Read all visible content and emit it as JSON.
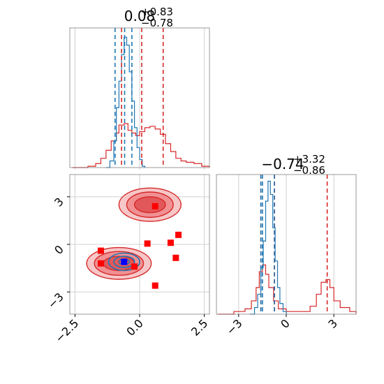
{
  "chart_data": {
    "type": "corner",
    "colors": {
      "red": "#d62728",
      "blue": "#1f77b4",
      "scatter": "#ff0000",
      "marker": "#0000ff",
      "grid": "#d0d0d0"
    },
    "params": [
      {
        "title_value": "0.08",
        "title_plus": "+0.83",
        "title_minus": "−0.78",
        "range": [
          -2.7,
          2.7
        ],
        "xticks": [
          -2.5,
          0.0,
          2.5
        ],
        "xtick_labels": [
          "−2.5",
          "0.0",
          "2.5"
        ],
        "red_quantiles": [
          -0.7,
          0.08,
          0.91
        ],
        "blue_quantiles": [
          -0.95,
          -0.58,
          -0.3
        ],
        "red_hist": [
          {
            "x": -2.6,
            "y": 0.0
          },
          {
            "x": -2.0,
            "y": 0.01
          },
          {
            "x": -1.7,
            "y": 0.03
          },
          {
            "x": -1.5,
            "y": 0.07
          },
          {
            "x": -1.3,
            "y": 0.13
          },
          {
            "x": -1.1,
            "y": 0.2
          },
          {
            "x": -0.9,
            "y": 0.26
          },
          {
            "x": -0.8,
            "y": 0.32
          },
          {
            "x": -0.6,
            "y": 0.33
          },
          {
            "x": -0.45,
            "y": 0.28
          },
          {
            "x": -0.3,
            "y": 0.26
          },
          {
            "x": -0.15,
            "y": 0.24
          },
          {
            "x": 0.0,
            "y": 0.27
          },
          {
            "x": 0.2,
            "y": 0.3
          },
          {
            "x": 0.4,
            "y": 0.31
          },
          {
            "x": 0.6,
            "y": 0.29
          },
          {
            "x": 0.8,
            "y": 0.25
          },
          {
            "x": 1.0,
            "y": 0.18
          },
          {
            "x": 1.2,
            "y": 0.12
          },
          {
            "x": 1.4,
            "y": 0.07
          },
          {
            "x": 1.6,
            "y": 0.05
          },
          {
            "x": 1.8,
            "y": 0.04
          },
          {
            "x": 2.1,
            "y": 0.03
          },
          {
            "x": 2.4,
            "y": 0.01
          },
          {
            "x": 2.7,
            "y": 0.0
          }
        ],
        "blue_hist": [
          {
            "x": -1.3,
            "y": 0.0
          },
          {
            "x": -1.15,
            "y": 0.05
          },
          {
            "x": -1.0,
            "y": 0.2
          },
          {
            "x": -0.9,
            "y": 0.45
          },
          {
            "x": -0.8,
            "y": 0.65
          },
          {
            "x": -0.7,
            "y": 0.85
          },
          {
            "x": -0.6,
            "y": 0.98
          },
          {
            "x": -0.5,
            "y": 0.92
          },
          {
            "x": -0.4,
            "y": 0.72
          },
          {
            "x": -0.3,
            "y": 0.5
          },
          {
            "x": -0.2,
            "y": 0.3
          },
          {
            "x": -0.1,
            "y": 0.15
          },
          {
            "x": 0.0,
            "y": 0.06
          },
          {
            "x": 0.1,
            "y": 0.01
          },
          {
            "x": 0.2,
            "y": 0.0
          }
        ]
      },
      {
        "title_value": "−0.74",
        "title_plus": "+3.32",
        "title_minus": "−0.86",
        "range": [
          -4.4,
          4.4
        ],
        "xticks": [
          -3,
          0,
          3
        ],
        "xtick_labels": [
          "−3",
          "0",
          "3"
        ],
        "red_quantiles": [
          -1.6,
          -0.74,
          2.58
        ],
        "blue_quantiles": [
          -1.6,
          -1.5,
          -0.75
        ],
        "red_hist": [
          {
            "x": -4.3,
            "y": 0.0
          },
          {
            "x": -3.3,
            "y": 0.02
          },
          {
            "x": -2.6,
            "y": 0.04
          },
          {
            "x": -2.2,
            "y": 0.1
          },
          {
            "x": -1.9,
            "y": 0.2
          },
          {
            "x": -1.7,
            "y": 0.32
          },
          {
            "x": -1.5,
            "y": 0.37
          },
          {
            "x": -1.3,
            "y": 0.3
          },
          {
            "x": -1.1,
            "y": 0.2
          },
          {
            "x": -0.8,
            "y": 0.1
          },
          {
            "x": -0.5,
            "y": 0.04
          },
          {
            "x": 0.0,
            "y": 0.02
          },
          {
            "x": 1.0,
            "y": 0.02
          },
          {
            "x": 1.5,
            "y": 0.06
          },
          {
            "x": 1.9,
            "y": 0.15
          },
          {
            "x": 2.2,
            "y": 0.24
          },
          {
            "x": 2.5,
            "y": 0.26
          },
          {
            "x": 2.75,
            "y": 0.2
          },
          {
            "x": 3.0,
            "y": 0.1
          },
          {
            "x": 3.4,
            "y": 0.05
          },
          {
            "x": 4.0,
            "y": 0.02
          },
          {
            "x": 4.4,
            "y": 0.0
          }
        ],
        "blue_hist": [
          {
            "x": -2.3,
            "y": 0.0
          },
          {
            "x": -2.0,
            "y": 0.05
          },
          {
            "x": -1.8,
            "y": 0.15
          },
          {
            "x": -1.6,
            "y": 0.35
          },
          {
            "x": -1.45,
            "y": 0.55
          },
          {
            "x": -1.3,
            "y": 0.85
          },
          {
            "x": -1.15,
            "y": 1.0
          },
          {
            "x": -1.0,
            "y": 0.9
          },
          {
            "x": -0.85,
            "y": 0.65
          },
          {
            "x": -0.7,
            "y": 0.4
          },
          {
            "x": -0.55,
            "y": 0.2
          },
          {
            "x": -0.4,
            "y": 0.08
          },
          {
            "x": -0.2,
            "y": 0.02
          },
          {
            "x": 0.0,
            "y": 0.0
          }
        ]
      }
    ],
    "joint": {
      "xrange": [
        -2.7,
        2.7
      ],
      "yrange": [
        -4.4,
        4.4
      ],
      "yticks": [
        -3,
        0,
        3
      ],
      "ytick_labels": [
        "−3",
        "0",
        "3"
      ],
      "red_modes": [
        {
          "cx": 0.4,
          "cy": 2.5,
          "rx": [
            1.2,
            0.9,
            0.6
          ],
          "ry": [
            1.05,
            0.8,
            0.5
          ]
        },
        {
          "cx": -0.8,
          "cy": -1.2,
          "rx": [
            1.25,
            0.95,
            0.6
          ],
          "ry": [
            1.0,
            0.75,
            0.45
          ]
        }
      ],
      "blue_mode": {
        "cx": -0.6,
        "cy": -1.1,
        "rx": [
          0.6,
          0.4,
          0.2
        ],
        "ry": [
          0.55,
          0.35,
          0.18
        ]
      },
      "red_points": [
        {
          "x": 0.6,
          "y": 2.4
        },
        {
          "x": -1.5,
          "y": -0.4
        },
        {
          "x": -1.5,
          "y": -1.2
        },
        {
          "x": 0.3,
          "y": 0.05
        },
        {
          "x": 1.2,
          "y": 0.1
        },
        {
          "x": 1.5,
          "y": 0.6
        },
        {
          "x": 1.4,
          "y": -0.85
        },
        {
          "x": -0.2,
          "y": -1.4
        },
        {
          "x": 0.6,
          "y": -2.6
        }
      ],
      "blue_point": {
        "x": -0.6,
        "y": -1.1
      }
    }
  }
}
